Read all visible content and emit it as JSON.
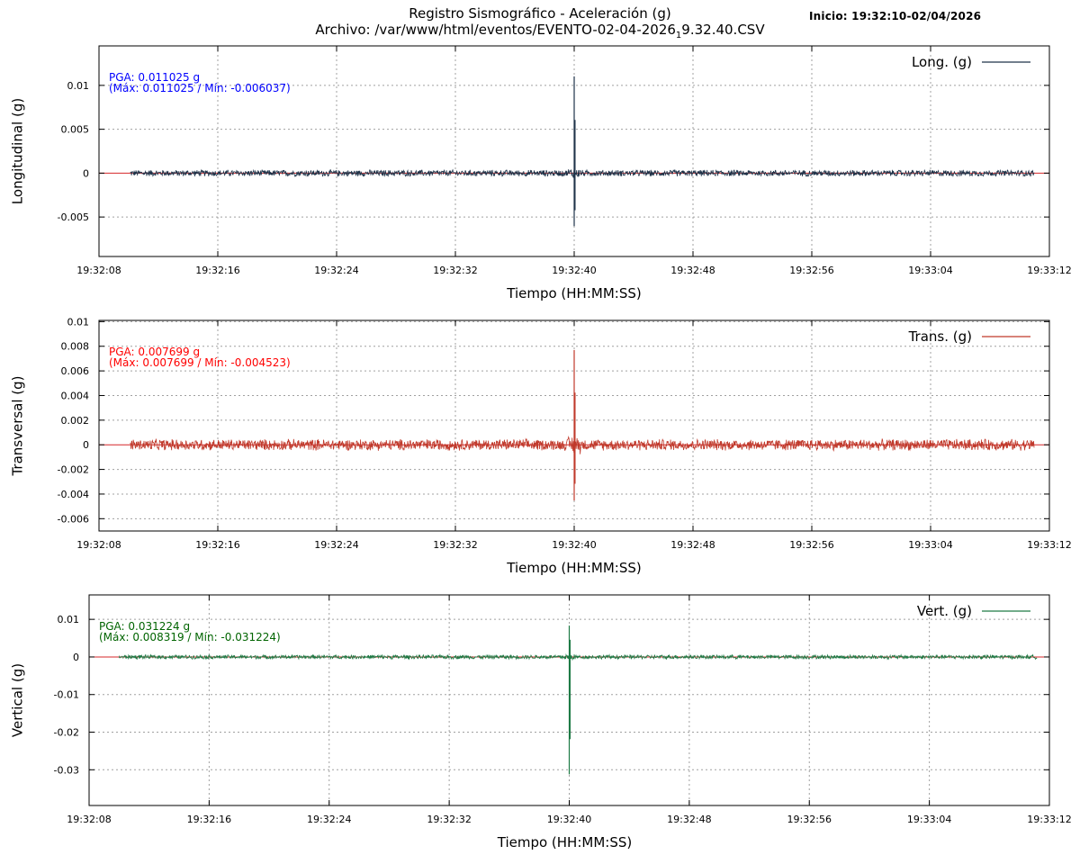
{
  "header": {
    "title_line1": "Registro Sismográfico - Aceleración (g)",
    "title_line2_prefix": "Archivo: /var/www/html/eventos/EVENTO-02-04-2026",
    "title_line2_subscript": "1",
    "title_line2_suffix": "9.32.40.CSV",
    "start_info": "Inicio: 19:32:10-02/04/2026"
  },
  "chart_data": [
    {
      "type": "line",
      "id": "long",
      "ylabel": "Longitudinal (g)",
      "xlabel": "Tiempo (HH:MM:SS)",
      "xlim": [
        0,
        64
      ],
      "ylim": [
        -0.0095,
        0.0145
      ],
      "yticks": [
        -0.005,
        0,
        0.005,
        0.01
      ],
      "ytick_labels": [
        "-0.005",
        "0",
        "0.005",
        "0.01"
      ],
      "xticks": [
        0,
        8,
        16,
        24,
        32,
        40,
        48,
        56,
        64
      ],
      "xtick_labels": [
        "19:32:08",
        "19:32:16",
        "19:32:24",
        "19:32:32",
        "19:32:40",
        "19:32:48",
        "19:32:56",
        "19:33:04",
        "19:33:12"
      ],
      "grid": true,
      "legend_position": "top-right",
      "baseline_color": "#d62728",
      "series": [
        {
          "name": "Long. (g)",
          "color": "#1f3349",
          "data_start": 2.1,
          "data_end": 63.0,
          "noise_amplitude": 0.0004,
          "event_time": 32.0,
          "max": 0.011025,
          "min": -0.006037
        }
      ],
      "annotation": {
        "line1": "PGA: 0.011025 g",
        "line2": "(Máx: 0.011025 / Mín: -0.006037)",
        "color": "#0000ff"
      }
    },
    {
      "type": "line",
      "id": "trans",
      "ylabel": "Transversal (g)",
      "xlabel": "Tiempo (HH:MM:SS)",
      "xlim": [
        0,
        64
      ],
      "ylim": [
        -0.007,
        0.0101
      ],
      "yticks": [
        -0.006,
        -0.004,
        -0.002,
        0,
        0.002,
        0.004,
        0.006,
        0.008,
        0.01
      ],
      "ytick_labels": [
        "-0.006",
        "-0.004",
        "-0.002",
        "0",
        "0.002",
        "0.004",
        "0.006",
        "0.008",
        "0.01"
      ],
      "xticks": [
        0,
        8,
        16,
        24,
        32,
        40,
        48,
        56,
        64
      ],
      "xtick_labels": [
        "19:32:08",
        "19:32:16",
        "19:32:24",
        "19:32:32",
        "19:32:40",
        "19:32:48",
        "19:32:56",
        "19:33:04",
        "19:33:12"
      ],
      "grid": true,
      "legend_position": "top-right",
      "baseline_color": "#d62728",
      "series": [
        {
          "name": "Trans. (g)",
          "color": "#c0392b",
          "data_start": 2.1,
          "data_end": 63.0,
          "noise_amplitude": 0.0005,
          "event_time": 32.0,
          "max": 0.007699,
          "min": -0.004523
        }
      ],
      "annotation": {
        "line1": "PGA: 0.007699 g",
        "line2": "(Máx: 0.007699 / Mín: -0.004523)",
        "color": "#ff0000"
      }
    },
    {
      "type": "line",
      "id": "vert",
      "ylabel": "Vertical (g)",
      "xlabel": "Tiempo (HH:MM:SS)",
      "xlim": [
        0,
        64
      ],
      "ylim": [
        -0.0395,
        0.0165
      ],
      "yticks": [
        -0.03,
        -0.02,
        -0.01,
        0,
        0.01
      ],
      "ytick_labels": [
        "-0.03",
        "-0.02",
        "-0.01",
        "0",
        "0.01"
      ],
      "xticks": [
        0,
        8,
        16,
        24,
        32,
        40,
        48,
        56,
        64
      ],
      "xtick_labels": [
        "19:32:08",
        "19:32:16",
        "19:32:24",
        "19:32:32",
        "19:32:40",
        "19:32:48",
        "19:32:56",
        "19:33:04",
        "19:33:12"
      ],
      "grid": true,
      "legend_position": "top-right",
      "baseline_color": "#d62728",
      "series": [
        {
          "name": "Vert. (g)",
          "color": "#1e7a45",
          "data_start": 2.0,
          "data_end": 63.2,
          "noise_amplitude": 0.0006,
          "event_time": 32.0,
          "max": 0.008319,
          "min": -0.031224
        }
      ],
      "annotation": {
        "line1": "PGA: 0.031224 g",
        "line2": "(Máx: 0.008319 / Mín: -0.031224)",
        "color": "#006400"
      }
    }
  ]
}
